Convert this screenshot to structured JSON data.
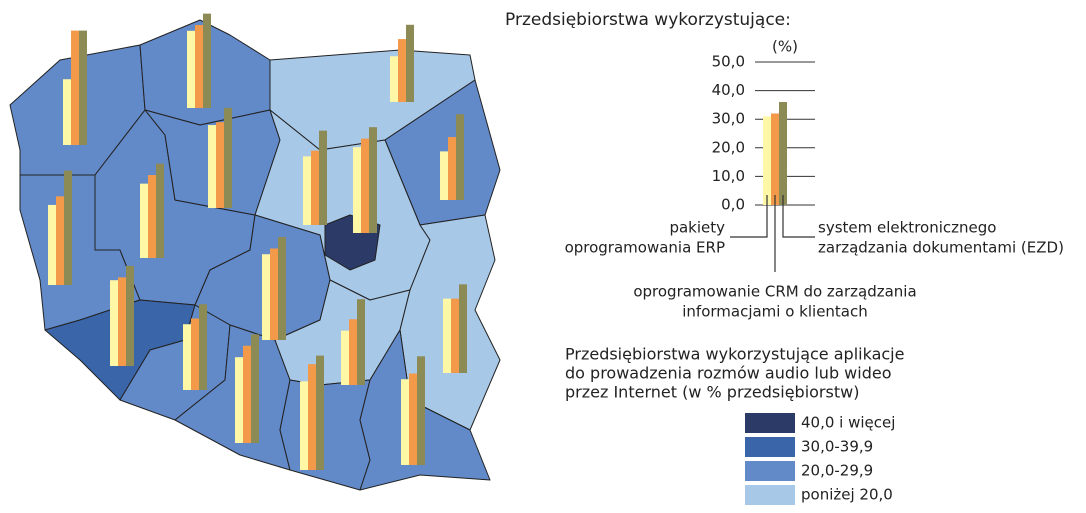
{
  "map": {
    "regions": [
      {
        "class": 2,
        "values": [
          23,
          40,
          40
        ]
      },
      {
        "class": 2,
        "values": [
          27,
          29,
          33
        ]
      },
      {
        "class": 3,
        "values": [
          16,
          22,
          27
        ]
      },
      {
        "class": 2,
        "values": [
          17,
          22,
          30
        ]
      },
      {
        "class": 2,
        "values": [
          28,
          31,
          40
        ]
      },
      {
        "class": 2,
        "values": [
          26,
          29,
          33
        ]
      },
      {
        "class": 2,
        "values": [
          29,
          30,
          35
        ]
      },
      {
        "class": 3,
        "values": [
          24,
          26,
          33
        ]
      },
      {
        "class": 0,
        "values": [
          30,
          33,
          37
        ]
      },
      {
        "class": 2,
        "values": [
          30,
          32,
          36
        ]
      },
      {
        "class": 1,
        "values": [
          30,
          31,
          35
        ]
      },
      {
        "class": 2,
        "values": [
          23,
          25,
          30
        ]
      },
      {
        "class": 2,
        "values": [
          30,
          34,
          38
        ]
      },
      {
        "class": 3,
        "values": [
          19,
          23,
          30
        ]
      },
      {
        "class": 3,
        "values": [
          26,
          26,
          31
        ]
      },
      {
        "class": 2,
        "values": [
          31,
          37,
          40
        ]
      },
      {
        "class": 2,
        "values": [
          30,
          32,
          38
        ]
      }
    ]
  },
  "key_chart": {
    "type": "bar",
    "title": "Przedsiębiorstwa wykorzystujące:",
    "unit": "(%)",
    "ylim": [
      0,
      50
    ],
    "yticks": [
      {
        "value": 0,
        "label": "0,0"
      },
      {
        "value": 10,
        "label": "10,0"
      },
      {
        "value": 20,
        "label": "20,0"
      },
      {
        "value": 30,
        "label": "30,0"
      },
      {
        "value": 40,
        "label": "40,0"
      },
      {
        "value": 50,
        "label": "50,0"
      }
    ],
    "series": [
      {
        "label_lines": [
          "pakiety",
          "oprogramowania ERP"
        ],
        "color": "#fdf7a6",
        "value": 31
      },
      {
        "label_lines": [
          "oprogramowanie CRM do zarządzania",
          "informacjami o klientach"
        ],
        "color": "#f39a4a",
        "value": 32
      },
      {
        "label_lines": [
          "system elektronicznego",
          "zarządzania dokumentami (EZD)"
        ],
        "color": "#8c8a55",
        "value": 36
      }
    ]
  },
  "legend": {
    "title_lines": [
      "Przedsiębiorstwa wykorzystujące aplikacje",
      "do prowadzenia rozmów audio lub wideo",
      "przez Internet (w % przedsiębiorstw)"
    ],
    "items": [
      {
        "label": "40,0 i więcej",
        "color": "#2b3a67"
      },
      {
        "label": "30,0-39,9",
        "color": "#3a65a8"
      },
      {
        "label": "20,0-29,9",
        "color": "#6289c8"
      },
      {
        "label": "poniżej 20,0",
        "color": "#a8c8e8"
      }
    ]
  }
}
